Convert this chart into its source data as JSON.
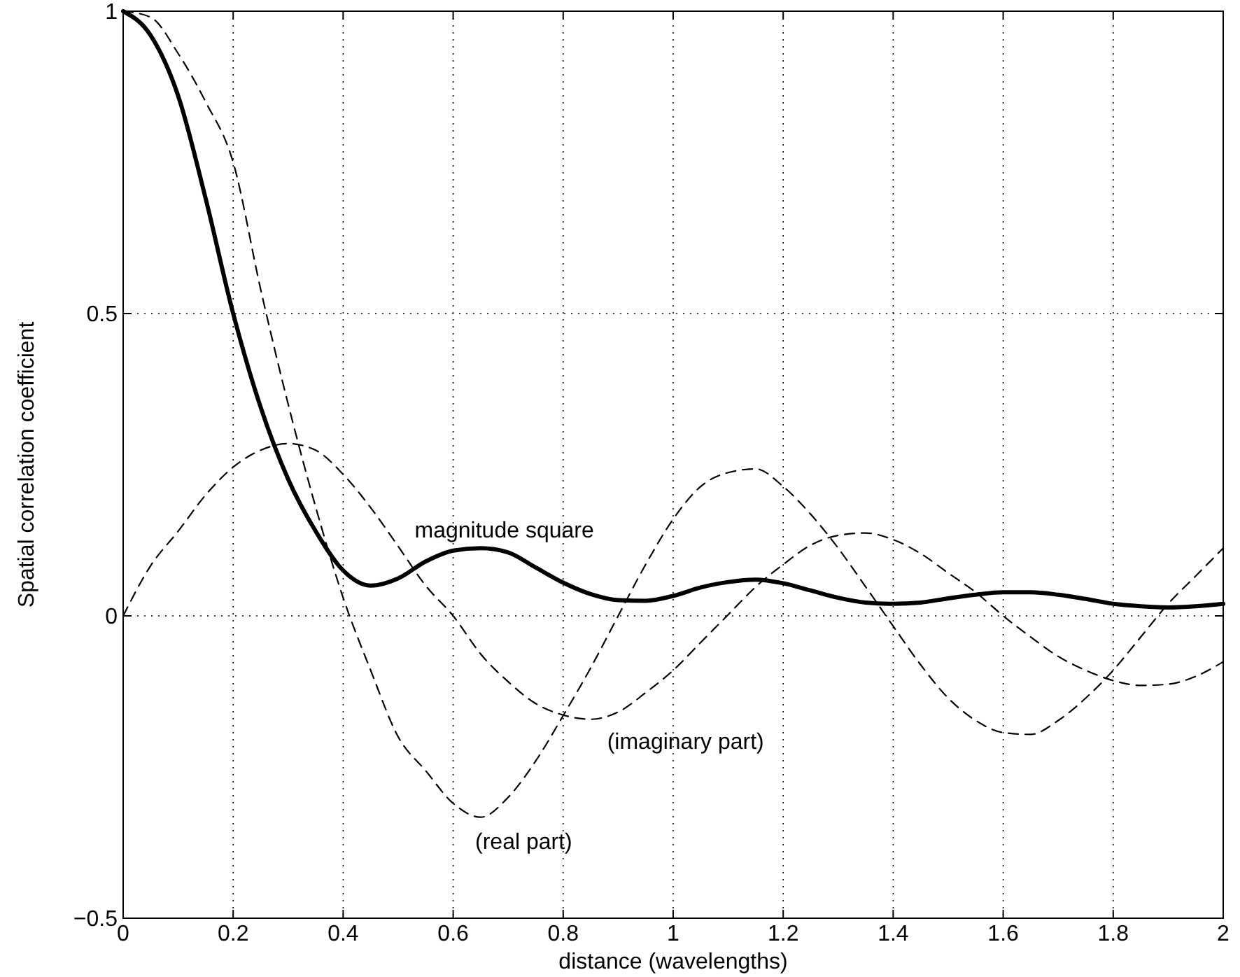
{
  "chart_data": {
    "type": "line",
    "xlabel": "distance (wavelengths)",
    "ylabel": "Spatial correlation coefficient",
    "x": [
      0,
      0.05,
      0.1,
      0.15,
      0.2,
      0.25,
      0.3,
      0.35,
      0.4,
      0.45,
      0.5,
      0.55,
      0.6,
      0.65,
      0.7,
      0.75,
      0.8,
      0.85,
      0.9,
      0.95,
      1,
      1.05,
      1.1,
      1.15,
      1.2,
      1.25,
      1.3,
      1.35,
      1.4,
      1.45,
      1.5,
      1.55,
      1.6,
      1.65,
      1.7,
      1.75,
      1.8,
      1.85,
      1.9,
      1.95,
      2
    ],
    "series": [
      {
        "color": "#000000",
        "line_style": "solid",
        "values": [
          1,
          0.96,
          0.86,
          0.69,
          0.5,
          0.345,
          0.226,
          0.14,
          0.075,
          0.05,
          0.062,
          0.09,
          0.108,
          0.112,
          0.105,
          0.08,
          0.055,
          0.036,
          0.026,
          0.025,
          0.033,
          0.047,
          0.056,
          0.06,
          0.054,
          0.042,
          0.03,
          0.022,
          0.02,
          0.022,
          0.029,
          0.035,
          0.039,
          0.039,
          0.035,
          0.028,
          0.02,
          0.016,
          0.014,
          0.016,
          0.02
        ]
      },
      {
        "color": "#000000",
        "line_style": "dashed",
        "values": [
          1,
          0.99,
          0.93,
          0.85,
          0.75,
          0.54,
          0.35,
          0.18,
          0.03,
          -0.09,
          -0.2,
          -0.256,
          -0.31,
          -0.333,
          -0.3,
          -0.24,
          -0.165,
          -0.086,
          0,
          0.085,
          0.16,
          0.214,
          0.237,
          0.243,
          0.214,
          0.168,
          0.112,
          0.048,
          -0.017,
          -0.081,
          -0.136,
          -0.173,
          -0.193,
          -0.196,
          -0.173,
          -0.136,
          -0.09,
          -0.035,
          0.02,
          0.066,
          0.112
        ]
      },
      {
        "color": "#000000",
        "line_style": "dashed",
        "values": [
          0,
          0.083,
          0.14,
          0.2,
          0.246,
          0.274,
          0.285,
          0.274,
          0.234,
          0.179,
          0.115,
          0.05,
          0,
          -0.063,
          -0.109,
          -0.145,
          -0.164,
          -0.171,
          -0.159,
          -0.127,
          -0.09,
          -0.044,
          0.002,
          0.048,
          0.085,
          0.117,
          0.133,
          0.137,
          0.126,
          0.103,
          0.071,
          0.039,
          0,
          -0.035,
          -0.067,
          -0.09,
          -0.107,
          -0.115,
          -0.113,
          -0.1,
          -0.076
        ]
      }
    ],
    "xlim": [
      0,
      2
    ],
    "ylim": [
      -0.5,
      1
    ],
    "xticks": [
      0,
      0.2,
      0.4,
      0.6,
      0.8,
      1,
      1.2,
      1.4,
      1.6,
      1.8,
      2
    ],
    "yticks": [
      {
        "value": -0.5,
        "label": "−0.5"
      },
      0,
      0.5,
      1
    ],
    "grid": true,
    "marker": "none",
    "annotations": [
      "magnitude square",
      "(imaginary part)",
      "(real part)"
    ]
  }
}
